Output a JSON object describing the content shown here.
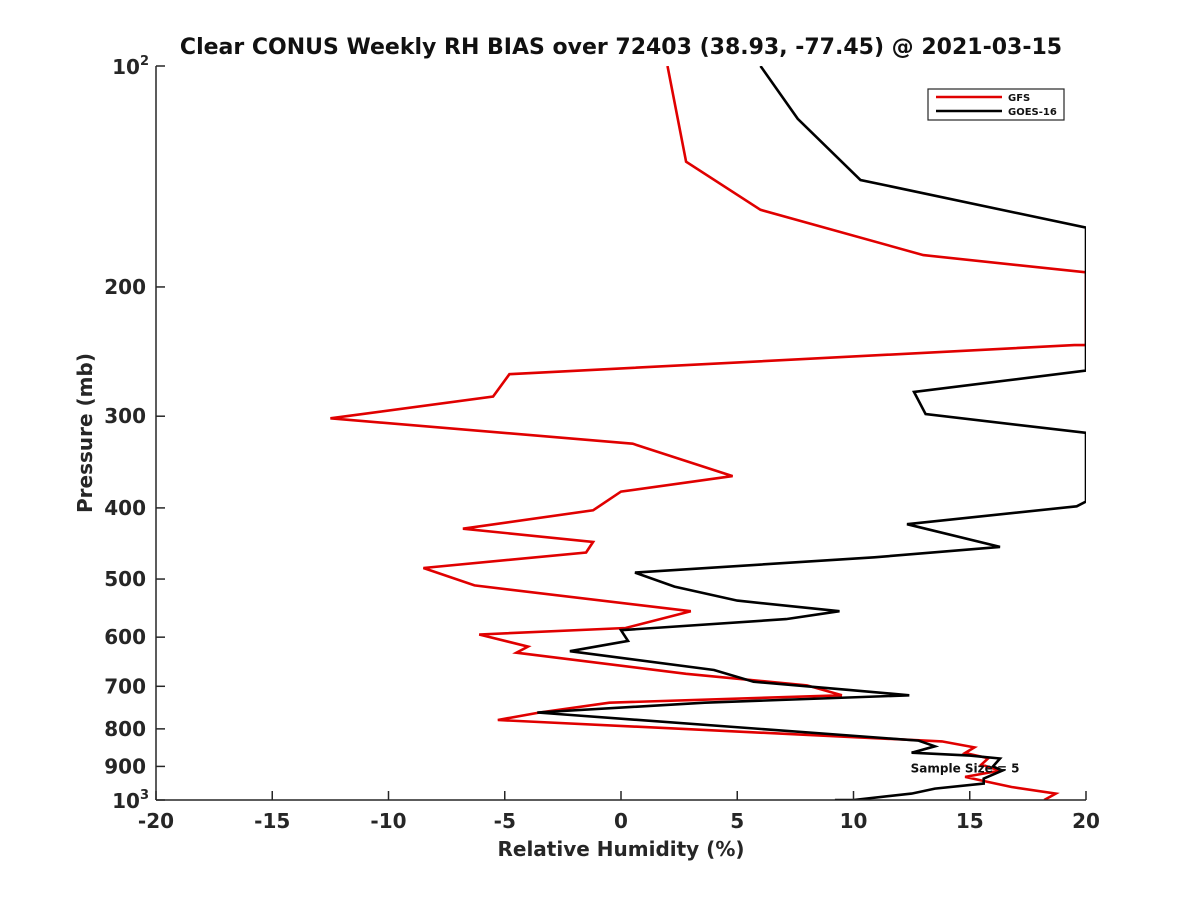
{
  "chart_data": {
    "type": "line",
    "title": "Clear CONUS Weekly RH BIAS over 72403 (38.93, -77.45) @ 2021-03-15",
    "xlabel": "Relative Humidity (%)",
    "ylabel": "Pressure (mb)",
    "xlim": [
      -20,
      20
    ],
    "ylim": [
      100,
      1000
    ],
    "y_scale": "log",
    "y_reversed": true,
    "grid": false,
    "legend_position": "top-right",
    "x_ticks": [
      "-20",
      "-15",
      "-10",
      "-5",
      "0",
      "5",
      "10",
      "15",
      "20"
    ],
    "y_ticks": [
      {
        "value": 100,
        "base": "10",
        "exp": "2"
      },
      {
        "value": 200,
        "label": "200"
      },
      {
        "value": 300,
        "label": "300"
      },
      {
        "value": 400,
        "label": "400"
      },
      {
        "value": 500,
        "label": "500"
      },
      {
        "value": 600,
        "label": "600"
      },
      {
        "value": 700,
        "label": "700"
      },
      {
        "value": 800,
        "label": "800"
      },
      {
        "value": 900,
        "label": "900"
      },
      {
        "value": 1000,
        "base": "10",
        "exp": "3"
      }
    ],
    "annotation": "Sample Size = 5",
    "annotation_at": {
      "x": 12.5,
      "p": 900
    },
    "series": [
      {
        "name": "GFS",
        "color": "#e00000",
        "points": [
          [
            2,
            100
          ],
          [
            2.8,
            135
          ],
          [
            6,
            157
          ],
          [
            13,
            181
          ],
          [
            20,
            191
          ],
          [
            20,
            240
          ],
          [
            19.5,
            240
          ],
          [
            -4.8,
            263
          ],
          [
            -5.5,
            282
          ],
          [
            -12.5,
            302
          ],
          [
            0.5,
            327
          ],
          [
            4.8,
            362
          ],
          [
            0,
            380
          ],
          [
            -1.2,
            403
          ],
          [
            -6.8,
            427
          ],
          [
            -1.2,
            445
          ],
          [
            -1.5,
            460
          ],
          [
            -8.5,
            483
          ],
          [
            -6.3,
            510
          ],
          [
            3,
            553
          ],
          [
            0.2,
            583
          ],
          [
            -6.1,
            595
          ],
          [
            -4,
            618
          ],
          [
            -4.5,
            630
          ],
          [
            2.8,
            673
          ],
          [
            8,
            698
          ],
          [
            9.5,
            720
          ],
          [
            8.3,
            722
          ],
          [
            -0.5,
            737
          ],
          [
            -3.5,
            760
          ],
          [
            -5.3,
            778
          ],
          [
            13.8,
            832
          ],
          [
            15.2,
            848
          ],
          [
            14.8,
            863
          ],
          [
            15.8,
            877
          ],
          [
            15.5,
            895
          ],
          [
            16.3,
            912
          ],
          [
            14.8,
            930
          ],
          [
            15.8,
            945
          ],
          [
            16.8,
            960
          ],
          [
            18.7,
            980
          ],
          [
            18.2,
            1000
          ]
        ]
      },
      {
        "name": "GOES-16",
        "color": "#000000",
        "points": [
          [
            6,
            100
          ],
          [
            7.6,
            118
          ],
          [
            10.3,
            143
          ],
          [
            20,
            166
          ],
          [
            20,
            260
          ],
          [
            12.6,
            278
          ],
          [
            13.1,
            298
          ],
          [
            20,
            316
          ],
          [
            20,
            392
          ],
          [
            19.6,
            398
          ],
          [
            12.3,
            421
          ],
          [
            16.3,
            452
          ],
          [
            10.9,
            467
          ],
          [
            0.6,
            490
          ],
          [
            2.3,
            512
          ],
          [
            5,
            535
          ],
          [
            9.4,
            553
          ],
          [
            7.1,
            567
          ],
          [
            0,
            587
          ],
          [
            0.3,
            607
          ],
          [
            -2.2,
            627
          ],
          [
            4,
            665
          ],
          [
            5.7,
            690
          ],
          [
            9.8,
            708
          ],
          [
            12.4,
            720
          ],
          [
            3.6,
            737
          ],
          [
            -3.6,
            760
          ],
          [
            12.8,
            830
          ],
          [
            13.5,
            845
          ],
          [
            12.5,
            862
          ],
          [
            15,
            870
          ],
          [
            16.3,
            878
          ],
          [
            16,
            900
          ],
          [
            16.4,
            912
          ],
          [
            15.6,
            935
          ],
          [
            15.6,
            950
          ],
          [
            13.5,
            965
          ],
          [
            12.5,
            980
          ],
          [
            10,
            1000
          ],
          [
            9.2,
            1000
          ]
        ]
      }
    ]
  }
}
